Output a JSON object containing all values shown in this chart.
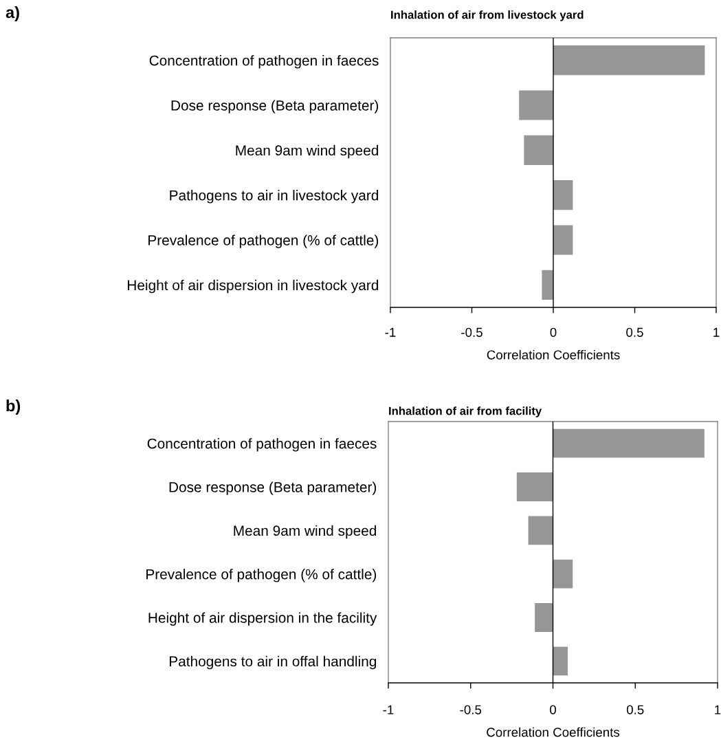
{
  "chart_data": [
    {
      "type": "bar",
      "orientation": "horizontal",
      "title": "Inhalation of air from livestock yard",
      "xlabel": "Correlation Coefficients",
      "annotations": [
        "a)"
      ],
      "categories": [
        "Concentration of pathogen in faeces",
        "Dose response (Beta parameter)",
        "Mean 9am wind speed",
        "Pathogens to air in livestock yard",
        "Prevalence of pathogen (% of cattle)",
        "Height of air dispersion in livestock yard"
      ],
      "values": [
        0.93,
        -0.21,
        -0.18,
        0.12,
        0.12,
        -0.07
      ],
      "color": "#969696",
      "xlim": [
        -1,
        1
      ],
      "xticks": [
        -1,
        -0.5,
        0,
        0.5,
        1
      ],
      "ref_lines": [
        {
          "axis": "x",
          "value": 0,
          "color": "#000000"
        }
      ]
    },
    {
      "type": "bar",
      "orientation": "horizontal",
      "title": "Inhalation of air from facility",
      "xlabel": "Correlation Coefficients",
      "annotations": [
        "b)"
      ],
      "categories": [
        "Concentration of pathogen in faeces",
        "Dose response (Beta parameter)",
        "Mean 9am wind speed",
        "Prevalence of pathogen (% of cattle)",
        "Height of air dispersion in the facility",
        "Pathogens to air in offal handling"
      ],
      "values": [
        0.92,
        -0.22,
        -0.15,
        0.12,
        -0.11,
        0.09
      ],
      "color": "#969696",
      "xlim": [
        -1,
        1
      ],
      "xticks": [
        -1,
        -0.5,
        0,
        0.5,
        1
      ],
      "ref_lines": [
        {
          "axis": "x",
          "value": 0,
          "color": "#000000"
        }
      ]
    }
  ]
}
